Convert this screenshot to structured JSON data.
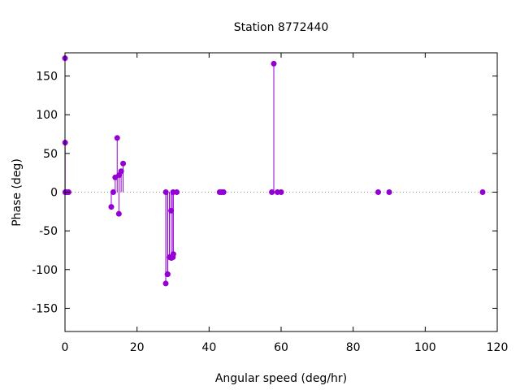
{
  "chart_data": {
    "type": "scatter",
    "style": "impulses-with-points",
    "title": "Station 8772440",
    "xlabel": "Angular speed (deg/hr)",
    "ylabel": "Phase (deg)",
    "xlim": [
      0,
      120
    ],
    "ylim": [
      -180,
      180
    ],
    "x_ticks": [
      0,
      20,
      40,
      60,
      80,
      100,
      120
    ],
    "y_ticks": [
      -150,
      -100,
      -50,
      0,
      50,
      100,
      150
    ],
    "zero_line": true,
    "grid": false,
    "color": "#9400d3",
    "series": [
      {
        "points": [
          {
            "x": 0.0,
            "y": 173
          },
          {
            "x": 0.04,
            "y": 64
          },
          {
            "x": 0.08,
            "y": 0
          },
          {
            "x": 0.5,
            "y": 0
          },
          {
            "x": 1.0,
            "y": 0
          },
          {
            "x": 12.85,
            "y": -19
          },
          {
            "x": 13.4,
            "y": 0
          },
          {
            "x": 13.94,
            "y": 19
          },
          {
            "x": 14.49,
            "y": 70
          },
          {
            "x": 14.96,
            "y": -28
          },
          {
            "x": 15.04,
            "y": 22
          },
          {
            "x": 15.59,
            "y": 27
          },
          {
            "x": 16.14,
            "y": 37
          },
          {
            "x": 27.97,
            "y": -118
          },
          {
            "x": 28.0,
            "y": 0
          },
          {
            "x": 28.44,
            "y": -106
          },
          {
            "x": 28.51,
            "y": -106
          },
          {
            "x": 28.99,
            "y": -84
          },
          {
            "x": 29.46,
            "y": -24
          },
          {
            "x": 29.53,
            "y": -85
          },
          {
            "x": 29.96,
            "y": -84
          },
          {
            "x": 30.0,
            "y": 0
          },
          {
            "x": 30.08,
            "y": -80
          },
          {
            "x": 31.02,
            "y": 0
          },
          {
            "x": 42.93,
            "y": 0
          },
          {
            "x": 43.48,
            "y": 0
          },
          {
            "x": 44.03,
            "y": 0
          },
          {
            "x": 57.42,
            "y": 0
          },
          {
            "x": 57.97,
            "y": 166
          },
          {
            "x": 58.98,
            "y": 0
          },
          {
            "x": 60.0,
            "y": 0
          },
          {
            "x": 86.95,
            "y": 0
          },
          {
            "x": 90.0,
            "y": 0
          },
          {
            "x": 115.94,
            "y": 0
          }
        ]
      }
    ]
  }
}
